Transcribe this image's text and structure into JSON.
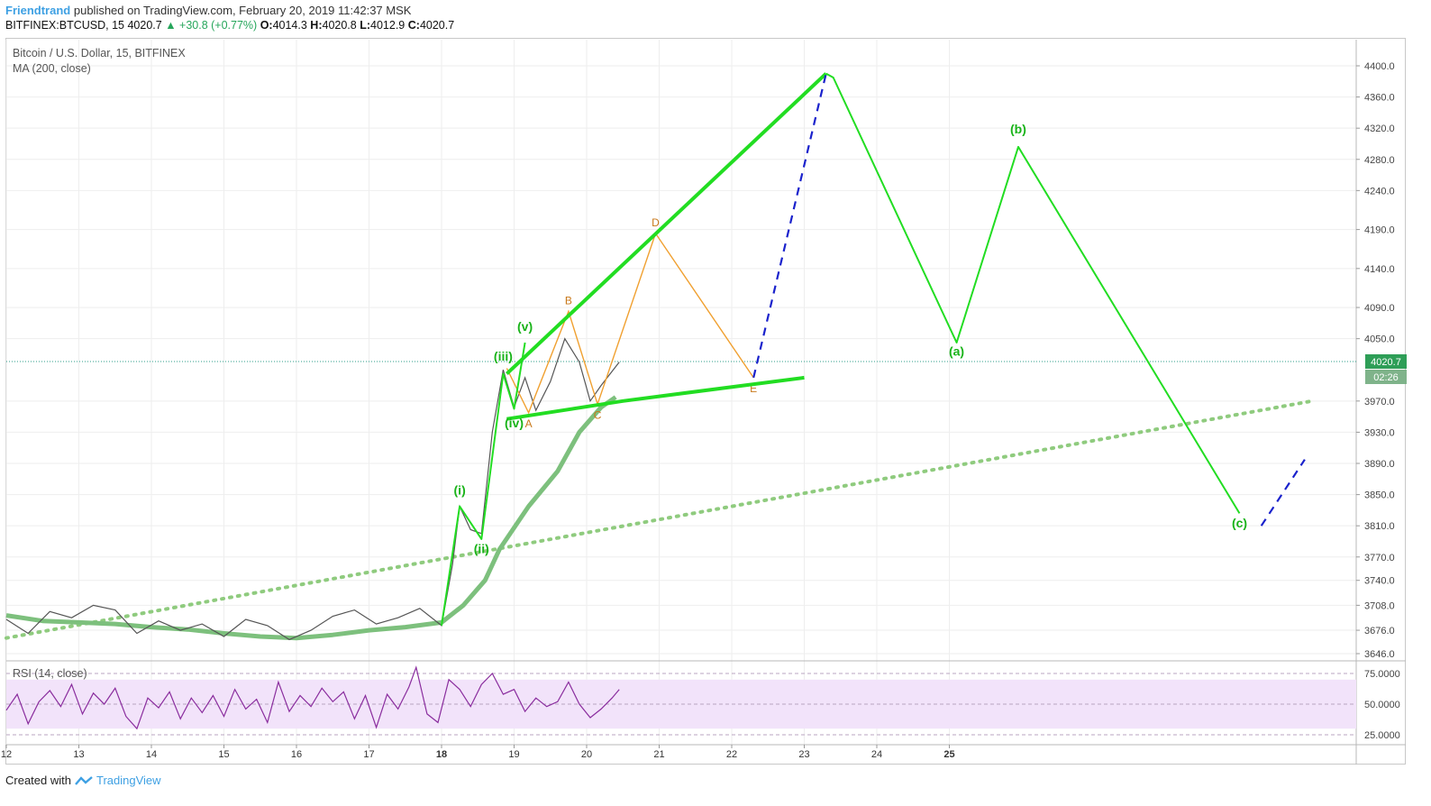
{
  "header": {
    "author": "Friendtrand",
    "published": "published on TradingView.com, February 20, 2019 11:42:37 MSK",
    "symbol": "BITFINEX:BTCUSD, 15",
    "last": "4020.7",
    "change": "▲ +30.8 (+0.77%)",
    "o_label": "O:",
    "o": "4014.3",
    "h_label": "H:",
    "h": "4020.8",
    "l_label": "L:",
    "l": "4012.9",
    "c_label": "C:",
    "c": "4020.7"
  },
  "legend": {
    "series": "Bitcoin / U.S. Dollar, 15, BITFINEX",
    "ma": "MA (200, close)",
    "rsi": "RSI (14, close)"
  },
  "footer": {
    "created_with": "Created with",
    "brand": "TradingView"
  },
  "colors": {
    "wave": "#22dd22",
    "ma": "#7dc07d",
    "harmonic": "#f0a030",
    "projection": "#1a22cc",
    "rsi_line": "#8a2d9e",
    "rsi_band": "#f2e3fa",
    "price_tag": "#2e9e57",
    "label_orange": "#c8781a"
  },
  "chart_data": {
    "type": "line",
    "y_axis_ticks": [
      4400.0,
      4360.0,
      4320.0,
      4280.0,
      4240.0,
      4190.0,
      4140.0,
      4090.0,
      4050.0,
      3970.0,
      3930.0,
      3890.0,
      3850.0,
      3810.0,
      3770.0,
      3740.0,
      3708.0,
      3676.0,
      3646.0
    ],
    "y_tick_labels": [
      "4400.0",
      "4360.0",
      "4320.0",
      "4280.0",
      "4240.0",
      "4190.0",
      "4140.0",
      "4090.0",
      "4050.0",
      "3970.0",
      "3930.0",
      "3890.0",
      "3850.0",
      "3810.0",
      "3770.0",
      "3740.0",
      "3708.0",
      "3676.0",
      "3646.0"
    ],
    "x_tick_labels": [
      "12",
      "13",
      "14",
      "15",
      "16",
      "17",
      "18",
      "19",
      "20",
      "21",
      "22",
      "23",
      "24",
      "25"
    ],
    "x_tick_days": [
      12,
      13,
      14,
      15,
      16,
      17,
      18,
      19,
      20,
      21,
      22,
      23,
      24,
      25
    ],
    "current_price": "4020.7",
    "countdown": "02:26",
    "rsi_ticks": [
      "75.0000",
      "50.0000",
      "25.0000"
    ],
    "rsi_levels": [
      75,
      50,
      25
    ],
    "rsi_band": [
      30,
      70
    ],
    "price_line": [
      [
        12.0,
        3690
      ],
      [
        12.3,
        3672
      ],
      [
        12.6,
        3700
      ],
      [
        12.9,
        3692
      ],
      [
        13.2,
        3708
      ],
      [
        13.5,
        3702
      ],
      [
        13.8,
        3672
      ],
      [
        14.1,
        3688
      ],
      [
        14.4,
        3676
      ],
      [
        14.7,
        3684
      ],
      [
        15.0,
        3668
      ],
      [
        15.3,
        3690
      ],
      [
        15.6,
        3682
      ],
      [
        15.9,
        3664
      ],
      [
        16.2,
        3676
      ],
      [
        16.5,
        3694
      ],
      [
        16.8,
        3702
      ],
      [
        17.1,
        3684
      ],
      [
        17.4,
        3692
      ],
      [
        17.7,
        3704
      ],
      [
        18.0,
        3682
      ],
      [
        18.15,
        3760
      ],
      [
        18.25,
        3835
      ],
      [
        18.4,
        3805
      ],
      [
        18.55,
        3800
      ],
      [
        18.7,
        3930
      ],
      [
        18.85,
        4010
      ],
      [
        19.0,
        3962
      ],
      [
        19.15,
        4000
      ],
      [
        19.3,
        3958
      ],
      [
        19.5,
        3995
      ],
      [
        19.7,
        4050
      ],
      [
        19.9,
        4020
      ],
      [
        20.05,
        3970
      ],
      [
        20.2,
        3990
      ],
      [
        20.45,
        4020
      ]
    ],
    "ma200": [
      [
        12.0,
        3695
      ],
      [
        12.5,
        3688
      ],
      [
        13.0,
        3686
      ],
      [
        13.5,
        3684
      ],
      [
        14.0,
        3680
      ],
      [
        14.5,
        3677
      ],
      [
        15.0,
        3672
      ],
      [
        15.5,
        3668
      ],
      [
        16.0,
        3666
      ],
      [
        16.5,
        3670
      ],
      [
        17.0,
        3676
      ],
      [
        17.5,
        3680
      ],
      [
        18.0,
        3686
      ],
      [
        18.3,
        3708
      ],
      [
        18.6,
        3740
      ],
      [
        18.8,
        3780
      ],
      [
        19.2,
        3835
      ],
      [
        19.6,
        3880
      ],
      [
        19.9,
        3930
      ],
      [
        20.2,
        3962
      ],
      [
        20.4,
        3975
      ]
    ],
    "rsi": [
      [
        12.0,
        45
      ],
      [
        12.15,
        58
      ],
      [
        12.3,
        34
      ],
      [
        12.45,
        52
      ],
      [
        12.6,
        61
      ],
      [
        12.75,
        48
      ],
      [
        12.9,
        66
      ],
      [
        13.05,
        42
      ],
      [
        13.2,
        59
      ],
      [
        13.35,
        50
      ],
      [
        13.5,
        63
      ],
      [
        13.65,
        40
      ],
      [
        13.8,
        30
      ],
      [
        13.95,
        55
      ],
      [
        14.1,
        47
      ],
      [
        14.25,
        60
      ],
      [
        14.4,
        38
      ],
      [
        14.55,
        55
      ],
      [
        14.7,
        43
      ],
      [
        14.85,
        57
      ],
      [
        15.0,
        40
      ],
      [
        15.15,
        62
      ],
      [
        15.3,
        46
      ],
      [
        15.45,
        54
      ],
      [
        15.6,
        35
      ],
      [
        15.75,
        68
      ],
      [
        15.9,
        44
      ],
      [
        16.05,
        57
      ],
      [
        16.2,
        48
      ],
      [
        16.35,
        63
      ],
      [
        16.5,
        52
      ],
      [
        16.65,
        60
      ],
      [
        16.8,
        38
      ],
      [
        16.95,
        57
      ],
      [
        17.1,
        31
      ],
      [
        17.25,
        58
      ],
      [
        17.4,
        46
      ],
      [
        17.55,
        64
      ],
      [
        17.65,
        80
      ],
      [
        17.8,
        42
      ],
      [
        17.95,
        35
      ],
      [
        18.1,
        70
      ],
      [
        18.25,
        62
      ],
      [
        18.4,
        48
      ],
      [
        18.55,
        66
      ],
      [
        18.7,
        75
      ],
      [
        18.85,
        58
      ],
      [
        19.0,
        62
      ],
      [
        19.15,
        44
      ],
      [
        19.3,
        55
      ],
      [
        19.45,
        48
      ],
      [
        19.6,
        52
      ],
      [
        19.75,
        68
      ],
      [
        19.9,
        50
      ],
      [
        20.05,
        39
      ],
      [
        20.2,
        46
      ],
      [
        20.35,
        55
      ],
      [
        20.45,
        62
      ]
    ],
    "wave_lines": [
      [
        [
          18.0,
          3682
        ],
        [
          18.25,
          3835
        ],
        [
          18.55,
          3793
        ],
        [
          18.85,
          4005
        ],
        [
          19.0,
          3960
        ],
        [
          19.15,
          4045
        ]
      ],
      [
        [
          18.9,
          4005
        ],
        [
          23.3,
          4390
        ]
      ],
      [
        [
          18.9,
          3947
        ],
        [
          20.5,
          3970
        ],
        [
          23.0,
          4000
        ]
      ],
      [
        [
          23.3,
          4390
        ],
        [
          23.4,
          4385
        ],
        [
          25.1,
          4045
        ],
        [
          25.95,
          4296
        ],
        [
          29.0,
          3826
        ]
      ]
    ],
    "wave_labels": [
      {
        "text": "(i)",
        "x": 18.25,
        "y": 3850
      },
      {
        "text": "(ii)",
        "x": 18.55,
        "y": 3775
      },
      {
        "text": "(iii)",
        "x": 18.85,
        "y": 4022
      },
      {
        "text": "(iv)",
        "x": 19.0,
        "y": 3936
      },
      {
        "text": "(v)",
        "x": 19.15,
        "y": 4060
      },
      {
        "text": "(a)",
        "x": 25.1,
        "y": 4028
      },
      {
        "text": "(b)",
        "x": 25.95,
        "y": 4313
      },
      {
        "text": "(c)",
        "x": 29.0,
        "y": 3808
      }
    ],
    "harmonic_points": [
      {
        "label": "A",
        "x": 19.2,
        "y": 3955
      },
      {
        "label": "B",
        "x": 19.75,
        "y": 4085
      },
      {
        "label": "C",
        "x": 20.15,
        "y": 3966
      },
      {
        "label": "D",
        "x": 20.95,
        "y": 4185
      },
      {
        "label": "E",
        "x": 22.3,
        "y": 4000
      }
    ],
    "trendline_dotted": [
      [
        12.0,
        3666
      ],
      [
        30.0,
        3970
      ]
    ],
    "projections": [
      [
        [
          22.3,
          4000
        ],
        [
          23.3,
          4390
        ]
      ],
      [
        [
          29.3,
          3810
        ],
        [
          29.9,
          3895
        ]
      ]
    ]
  }
}
